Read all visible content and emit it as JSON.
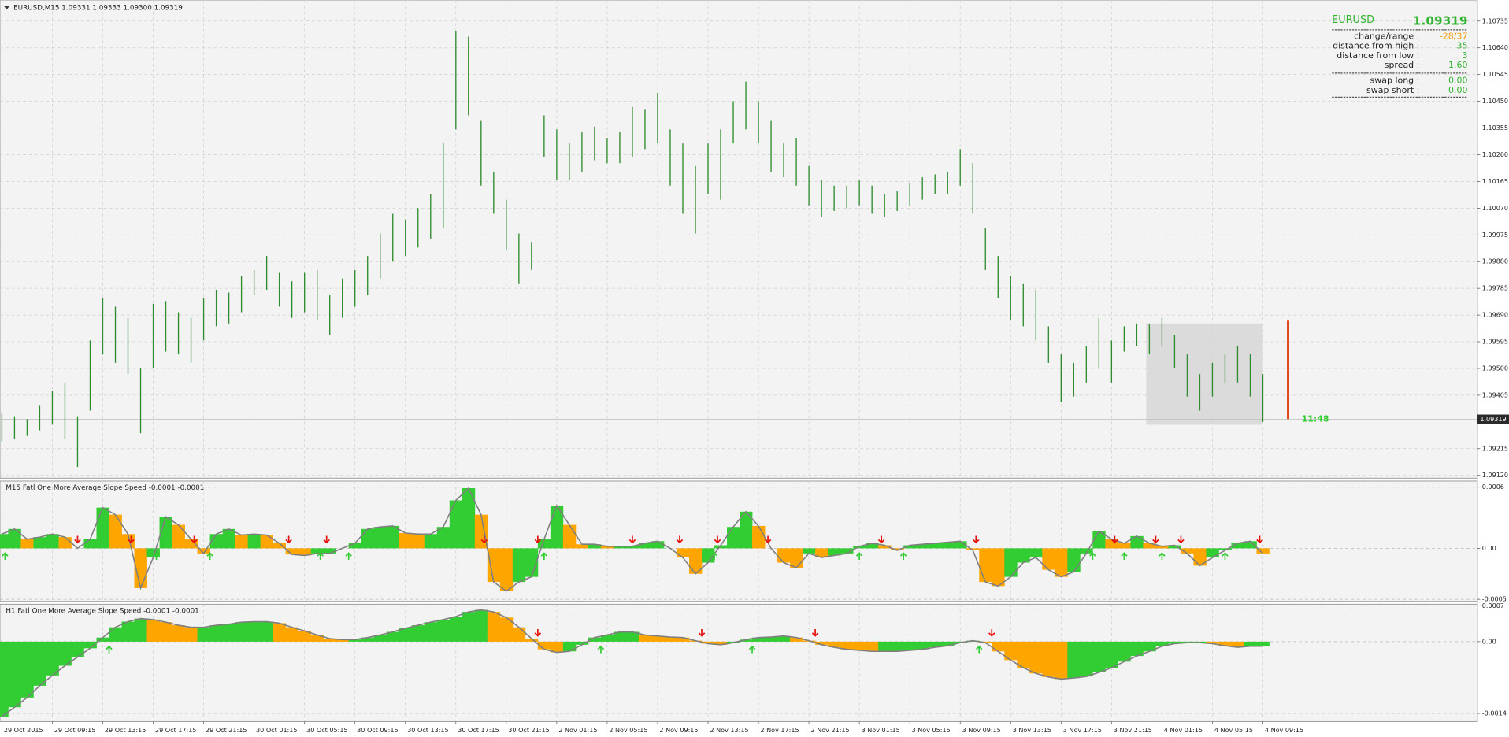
{
  "chart_data": [
    {
      "type": "ohlc",
      "title": "EURUSD,M15  1.09331 1.09333 1.09300 1.09319",
      "x": [
        0,
        4,
        8,
        12,
        16,
        20,
        24,
        28,
        32,
        36,
        40,
        44,
        48,
        52,
        56,
        60,
        64,
        68,
        72,
        76,
        80,
        84,
        88,
        92,
        96,
        100,
        104,
        108,
        112,
        116,
        120,
        124,
        128,
        132,
        136,
        140,
        144,
        148,
        152,
        156,
        160,
        164,
        168,
        172,
        176,
        180,
        184,
        188,
        192,
        196,
        200,
        204,
        208,
        212,
        216,
        220,
        224,
        228,
        232,
        236,
        240,
        244,
        248,
        252,
        256,
        260,
        264,
        268,
        272,
        276,
        280,
        284,
        288,
        292,
        296,
        300,
        304,
        308,
        312,
        316,
        320,
        324,
        328,
        332,
        336,
        340,
        344,
        348,
        352,
        356,
        360,
        364,
        368,
        372,
        376,
        380,
        384,
        388,
        392,
        396,
        400
      ],
      "high": [
        1.0934,
        1.0933,
        1.0932,
        1.0937,
        1.0942,
        1.0945,
        1.0933,
        1.096,
        1.0975,
        1.0972,
        1.0968,
        1.095,
        1.0973,
        1.0974,
        1.097,
        1.0968,
        1.0975,
        1.0978,
        1.0977,
        1.0983,
        1.0985,
        1.099,
        1.0984,
        1.0981,
        1.0984,
        1.0985,
        1.0976,
        1.0982,
        1.0985,
        1.099,
        1.0998,
        1.1005,
        1.1003,
        1.1007,
        1.1012,
        1.103,
        1.107,
        1.1068,
        1.1038,
        1.102,
        1.101,
        1.0998,
        1.0995,
        1.104,
        1.1035,
        1.103,
        1.1034,
        1.1036,
        1.1032,
        1.1034,
        1.1043,
        1.1042,
        1.1048,
        1.1035,
        1.103,
        1.1022,
        1.103,
        1.1035,
        1.1045,
        1.1052,
        1.1045,
        1.1038,
        1.103,
        1.1032,
        1.1022,
        1.1017,
        1.1015,
        1.1015,
        1.1017,
        1.1015,
        1.1012,
        1.1013,
        1.1016,
        1.1018,
        1.1019,
        1.102,
        1.1028,
        1.1023,
        1.1,
        1.099,
        1.0983,
        1.098,
        1.0978,
        1.0965,
        1.0955,
        1.0952,
        1.0958,
        1.0968,
        1.096,
        1.0965,
        1.0966,
        1.0966,
        1.0968,
        1.0962,
        1.0955,
        1.0948,
        1.0952,
        1.0955,
        1.0958,
        1.0955,
        1.0948
      ],
      "low": [
        1.0924,
        1.0925,
        1.0926,
        1.0928,
        1.093,
        1.0925,
        1.0915,
        1.0935,
        1.0955,
        1.0952,
        1.0948,
        1.0927,
        1.095,
        1.0956,
        1.0955,
        1.0952,
        1.096,
        1.0965,
        1.0966,
        1.097,
        1.0976,
        1.0978,
        1.0972,
        1.0968,
        1.097,
        1.0967,
        1.0962,
        1.0968,
        1.0972,
        1.0976,
        1.0982,
        1.0988,
        1.099,
        1.0993,
        1.0996,
        1.1,
        1.1035,
        1.104,
        1.1015,
        1.1005,
        1.0992,
        1.098,
        1.0985,
        1.1025,
        1.1017,
        1.1017,
        1.102,
        1.1024,
        1.1023,
        1.1023,
        1.1025,
        1.1028,
        1.103,
        1.1015,
        1.1005,
        1.0998,
        1.1012,
        1.101,
        1.103,
        1.1035,
        1.103,
        1.102,
        1.1018,
        1.1015,
        1.1008,
        1.1004,
        1.1006,
        1.1007,
        1.1008,
        1.1005,
        1.1004,
        1.1006,
        1.1008,
        1.101,
        1.1012,
        1.1012,
        1.1015,
        1.1005,
        1.0985,
        1.0975,
        1.0967,
        1.0965,
        1.096,
        1.0952,
        1.0938,
        1.094,
        1.0945,
        1.095,
        1.0945,
        1.0956,
        1.0958,
        1.0955,
        1.0958,
        1.095,
        1.094,
        1.0935,
        1.094,
        1.0945,
        1.0945,
        1.094,
        1.0931
      ],
      "color": "#2e8b2e",
      "xlim": [
        -0.6,
        468
      ],
      "ylim": [
        1.0911,
        1.1081
      ],
      "yticks": [
        1.10735,
        {
          "value": 1.1064,
          "label": "1.10640"
        },
        1.10545,
        {
          "value": 1.1045,
          "label": "1.10450"
        },
        1.10355,
        {
          "value": 1.1026,
          "label": "1.10260"
        },
        1.10165,
        {
          "value": 1.1007,
          "label": "1.10070"
        },
        1.09975,
        {
          "value": 1.0988,
          "label": "1.09880"
        },
        1.09785,
        {
          "value": 1.0969,
          "label": "1.09690"
        },
        1.09595,
        {
          "value": 1.095,
          "label": "1.09500"
        },
        1.09405,
        1.09215,
        {
          "value": 1.0912,
          "label": "1.09120"
        }
      ],
      "xticks": [
        {
          "value": 0,
          "label": "29 Oct 2015"
        },
        {
          "value": 16,
          "label": "29 Oct 09:15"
        },
        {
          "value": 32,
          "label": "29 Oct 13:15"
        },
        {
          "value": 48,
          "label": "29 Oct 17:15"
        },
        {
          "value": 64,
          "label": "29 Oct 21:15"
        },
        {
          "value": 80,
          "label": "30 Oct 01:15"
        },
        {
          "value": 96,
          "label": "30 Oct 05:15"
        },
        {
          "value": 112,
          "label": "30 Oct 09:15"
        },
        {
          "value": 128,
          "label": "30 Oct 13:15"
        },
        {
          "value": 144,
          "label": "30 Oct 17:15"
        },
        {
          "value": 160,
          "label": "30 Oct 21:15"
        },
        {
          "value": 176,
          "label": "2 Nov 01:15"
        },
        {
          "value": 192,
          "label": "2 Nov 05:15"
        },
        {
          "value": 208,
          "label": "2 Nov 09:15"
        },
        {
          "value": 224,
          "label": "2 Nov 13:15"
        },
        {
          "value": 240,
          "label": "2 Nov 17:15"
        },
        {
          "value": 256,
          "label": "2 Nov 21:15"
        },
        {
          "value": 272,
          "label": "3 Nov 01:15"
        },
        {
          "value": 288,
          "label": "3 Nov 05:15"
        },
        {
          "value": 304,
          "label": "3 Nov 09:15"
        },
        {
          "value": 320,
          "label": "3 Nov 13:15"
        },
        {
          "value": 336,
          "label": "3 Nov 17:15"
        },
        {
          "value": 352,
          "label": "3 Nov 21:15"
        },
        {
          "value": 368,
          "label": "4 Nov 01:15"
        },
        {
          "value": 384,
          "label": "4 Nov 05:15"
        },
        {
          "value": 400,
          "label": "4 Nov 09:15"
        }
      ],
      "grid": true,
      "current_price": 1.09319,
      "timer": "11:48",
      "range_box": {
        "x": [
          363,
          400
        ],
        "y": [
          1.093,
          1.0966
        ]
      },
      "range_bar": {
        "x": 408,
        "high": 1.0967,
        "low": 1.0932,
        "color": "#e8401c"
      }
    },
    {
      "type": "histogram",
      "title": "M15 Fatl One More Average Slope Speed -0.0001 -0.0001",
      "x": [
        0,
        4,
        8,
        12,
        16,
        20,
        24,
        28,
        32,
        36,
        40,
        44,
        48,
        52,
        56,
        60,
        64,
        68,
        72,
        76,
        80,
        84,
        88,
        92,
        96,
        100,
        104,
        108,
        112,
        116,
        120,
        124,
        128,
        132,
        136,
        140,
        144,
        148,
        152,
        156,
        160,
        164,
        168,
        172,
        176,
        180,
        184,
        188,
        192,
        196,
        200,
        204,
        208,
        212,
        216,
        220,
        224,
        228,
        232,
        236,
        240,
        244,
        248,
        252,
        256,
        260,
        264,
        268,
        272,
        276,
        280,
        284,
        288,
        292,
        296,
        300,
        304,
        308,
        312,
        316,
        320,
        324,
        328,
        332,
        336,
        340,
        344,
        348,
        352,
        356,
        360,
        364,
        368,
        372,
        376,
        380,
        384,
        388,
        392,
        396,
        400
      ],
      "values": [
        0.00014,
        0.00019,
        9e-05,
        0.00011,
        0.00014,
        0.00011,
        0,
        9e-05,
        0.0004,
        0.00033,
        0.00014,
        -0.00039,
        -9e-05,
        0.00031,
        0.00023,
        9e-05,
        -5e-05,
        0.00014,
        0.00019,
        0.00013,
        0.00014,
        0.00013,
        5e-05,
        -6e-05,
        -7e-05,
        -5e-05,
        -5e-05,
        0,
        5e-05,
        0.00019,
        0.00021,
        0.00022,
        0.00015,
        0.00014,
        0.00014,
        0.00021,
        0.00047,
        0.00059,
        0.00033,
        -0.00033,
        -0.00042,
        -0.00033,
        -0.00028,
        9e-05,
        0.00042,
        0.00023,
        4e-05,
        4e-05,
        2e-05,
        2e-05,
        2e-05,
        5e-05,
        7e-05,
        0,
        -9e-05,
        -0.00025,
        -0.00014,
        3e-05,
        0.00021,
        0.00036,
        0.00022,
        0,
        -0.00014,
        -0.00019,
        -5e-05,
        -9e-05,
        -7e-05,
        -5e-05,
        2e-05,
        5e-05,
        3e-05,
        -2e-05,
        3e-05,
        4e-05,
        5e-05,
        6e-05,
        7e-05,
        -2e-05,
        -0.00033,
        -0.00037,
        -0.00028,
        -0.00014,
        -9e-05,
        -0.00021,
        -0.00028,
        -0.00023,
        -5e-05,
        0.00017,
        9e-05,
        5e-05,
        0.00012,
        5e-05,
        2e-05,
        3e-05,
        -5e-05,
        -0.00017,
        -9e-05,
        -2e-05,
        5e-05,
        7e-05,
        -5e-05
      ],
      "rising_color": "#32cd32",
      "falling_color": "#ffa500",
      "line_color": "#7f7f7f",
      "ylim": [
        -0.00052,
        0.00066
      ],
      "yticks": [
        0.0006,
        {
          "value": 0,
          "label": "0.00"
        },
        -0.0005
      ],
      "down_arrows": [
        24,
        41,
        61,
        91,
        103,
        153,
        170,
        200,
        215,
        227,
        243,
        279,
        309,
        353,
        366,
        374,
        399
      ],
      "up_arrows": [
        1,
        49,
        66,
        101,
        110,
        172,
        226,
        272,
        286,
        346,
        356,
        368,
        388
      ],
      "down_color": "#e8120c",
      "up_color": "#32cd32"
    },
    {
      "type": "histogram",
      "title": "H1 Fatl One More Average Slope Speed -0.0001 -0.0001",
      "x": [
        0,
        4,
        8,
        12,
        16,
        20,
        24,
        28,
        32,
        36,
        40,
        44,
        48,
        52,
        56,
        60,
        64,
        68,
        72,
        76,
        80,
        84,
        88,
        92,
        96,
        100,
        104,
        108,
        112,
        116,
        120,
        124,
        128,
        132,
        136,
        140,
        144,
        148,
        152,
        156,
        160,
        164,
        168,
        172,
        176,
        180,
        184,
        188,
        192,
        196,
        200,
        204,
        208,
        212,
        216,
        220,
        224,
        228,
        232,
        236,
        240,
        244,
        248,
        252,
        256,
        260,
        264,
        268,
        272,
        276,
        280,
        284,
        288,
        292,
        296,
        300,
        304,
        308,
        312,
        316,
        320,
        324,
        328,
        332,
        336,
        340,
        344,
        348,
        352,
        356,
        360,
        364,
        368,
        372,
        376,
        380,
        384,
        388,
        392,
        396,
        400
      ],
      "values": [
        -0.00146,
        -0.00128,
        -0.00109,
        -0.00086,
        -0.00066,
        -0.00047,
        -0.0003,
        -0.00013,
        8e-05,
        0.00028,
        0.00039,
        0.00045,
        0.00043,
        0.00038,
        0.00032,
        0.00028,
        0.00028,
        0.00032,
        0.00034,
        0.00038,
        0.00039,
        0.00039,
        0.00036,
        0.00028,
        0.00021,
        0.00013,
        6e-05,
        4e-05,
        4e-05,
        8e-05,
        0.00013,
        0.00019,
        0.00026,
        0.00032,
        0.00038,
        0.00043,
        0.00049,
        0.00058,
        0.00062,
        0.00058,
        0.00047,
        0.00028,
        6e-05,
        -0.00015,
        -0.00021,
        -0.00019,
        -6e-05,
        8e-05,
        0.00013,
        0.00019,
        0.00019,
        0.00013,
        0.00011,
        9e-05,
        8e-05,
        2e-05,
        -4e-05,
        -6e-05,
        -2e-05,
        4e-05,
        8e-05,
        9e-05,
        0.00011,
        8e-05,
        2e-05,
        -6e-05,
        -0.00011,
        -0.00015,
        -0.00017,
        -0.00019,
        -0.00019,
        -0.00019,
        -0.00017,
        -0.00015,
        -0.00011,
        -8e-05,
        -2e-05,
        2e-05,
        -2e-05,
        -0.00019,
        -0.00036,
        -0.00051,
        -0.00062,
        -0.00069,
        -0.00073,
        -0.00071,
        -0.00068,
        -0.0006,
        -0.00051,
        -0.00039,
        -0.00028,
        -0.00019,
        -9e-05,
        -4e-05,
        -2e-05,
        -2e-05,
        -4e-05,
        -8e-05,
        -0.00011,
        -9e-05,
        -9e-05
      ],
      "rising_color": "#32cd32",
      "falling_color": "#ffa500",
      "line_color": "#7f7f7f",
      "ylim": [
        -0.00156,
        0.00073
      ],
      "yticks": [
        0.0007,
        {
          "value": 0,
          "label": "0.00"
        },
        -0.0014
      ],
      "down_arrows": [
        170,
        222,
        258,
        314
      ],
      "up_arrows": [
        34,
        190,
        238,
        310
      ],
      "down_color": "#e8120c",
      "up_color": "#32cd32"
    }
  ],
  "info_panel": {
    "symbol": "EURUSD",
    "price": "1.09319",
    "rows": [
      {
        "label": "change/range :",
        "value": "-28/37"
      },
      {
        "label": "distance from high :",
        "value": "35"
      },
      {
        "label": "distance from low :",
        "value": "3"
      },
      {
        "label": "spread :",
        "value": "1.60"
      },
      {
        "label": "swap long :",
        "value": "0.00"
      },
      {
        "label": "swap short :",
        "value": "0.00"
      }
    ]
  }
}
